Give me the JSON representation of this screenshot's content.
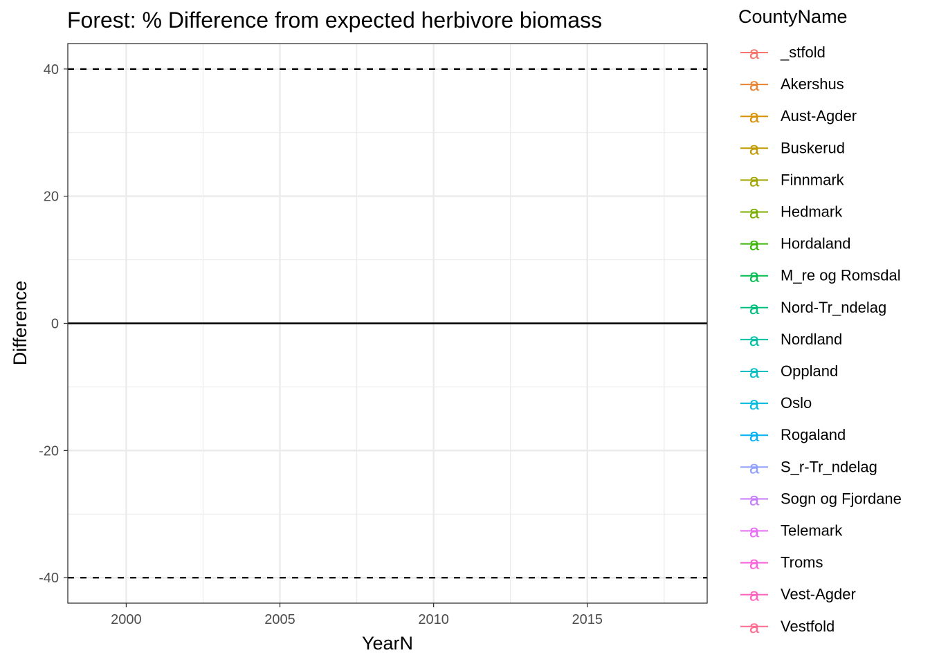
{
  "chart_data": {
    "type": "line",
    "title": "Forest: % Difference from expected herbivore biomass",
    "xlabel": "YearN",
    "ylabel": "Difference",
    "xlim": [
      1998.1,
      2018.9
    ],
    "ylim": [
      -44,
      44
    ],
    "x_ticks": [
      2000,
      2005,
      2010,
      2015
    ],
    "x_tick_labels": [
      "2000",
      "2005",
      "2010",
      "2015"
    ],
    "y_ticks": [
      40,
      20,
      0,
      -20,
      -40
    ],
    "y_tick_labels": [
      "40",
      "20",
      "0",
      "-20",
      "-40"
    ],
    "grid": true,
    "reference_lines": [
      {
        "y": 40,
        "style": "dashed"
      },
      {
        "y": 0,
        "style": "solid"
      },
      {
        "y": -40,
        "style": "dashed"
      }
    ],
    "legend_position": "right",
    "legend_title": "CountyName",
    "legend_key_glyph": "a",
    "series": [
      {
        "name": "_stfold",
        "color": "#F8766D",
        "values": []
      },
      {
        "name": "Akershus",
        "color": "#EA8331",
        "values": []
      },
      {
        "name": "Aust-Agder",
        "color": "#D89000",
        "values": []
      },
      {
        "name": "Buskerud",
        "color": "#C09B00",
        "values": []
      },
      {
        "name": "Finnmark",
        "color": "#A3A500",
        "values": []
      },
      {
        "name": "Hedmark",
        "color": "#7CAE00",
        "values": []
      },
      {
        "name": "Hordaland",
        "color": "#39B600",
        "values": []
      },
      {
        "name": "M_re og Romsdal",
        "color": "#00BB4E",
        "values": []
      },
      {
        "name": "Nord-Tr_ndelag",
        "color": "#00BF7D",
        "values": []
      },
      {
        "name": "Nordland",
        "color": "#00C1A3",
        "values": []
      },
      {
        "name": "Oppland",
        "color": "#00BFC4",
        "values": []
      },
      {
        "name": "Oslo",
        "color": "#00BAE0",
        "values": []
      },
      {
        "name": "Rogaland",
        "color": "#00B0F6",
        "values": []
      },
      {
        "name": "S_r-Tr_ndelag",
        "color": "#8F9FFF",
        "values": []
      },
      {
        "name": "Sogn og Fjordane",
        "color": "#C77CFF",
        "values": []
      },
      {
        "name": "Telemark",
        "color": "#E76BF3",
        "values": []
      },
      {
        "name": "Troms",
        "color": "#FA62DB",
        "values": []
      },
      {
        "name": "Vest-Agder",
        "color": "#FF62BC",
        "values": []
      },
      {
        "name": "Vestfold",
        "color": "#FF6C91",
        "values": []
      }
    ]
  }
}
